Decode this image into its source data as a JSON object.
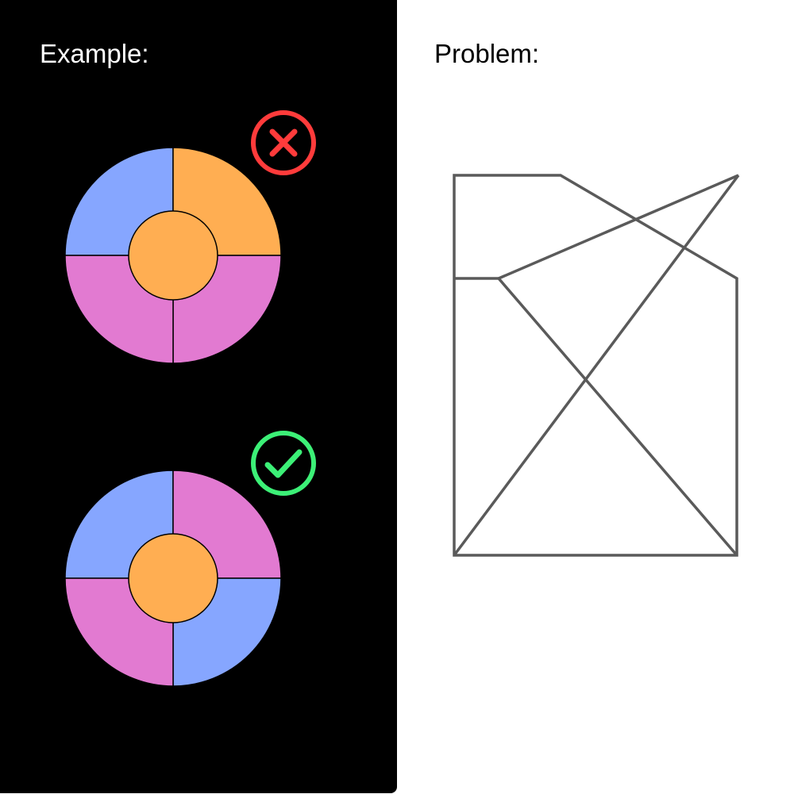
{
  "example": {
    "title": "Example:",
    "wrong": {
      "status_icon": "cross-icon",
      "status_color": "#ff3b3b",
      "center_color": "#ffae52",
      "segments": {
        "top_left": "#86a6ff",
        "top_right": "#ffae52",
        "bottom_left": "#e27ad1",
        "bottom_right": "#e27ad1"
      }
    },
    "right": {
      "status_icon": "check-icon",
      "status_color": "#3cf077",
      "center_color": "#ffae52",
      "segments": {
        "top_left": "#86a6ff",
        "top_right": "#e27ad1",
        "bottom_left": "#e27ad1",
        "bottom_right": "#86a6ff"
      }
    }
  },
  "problem": {
    "title": "Problem:",
    "line_color": "#5a5a5a"
  }
}
